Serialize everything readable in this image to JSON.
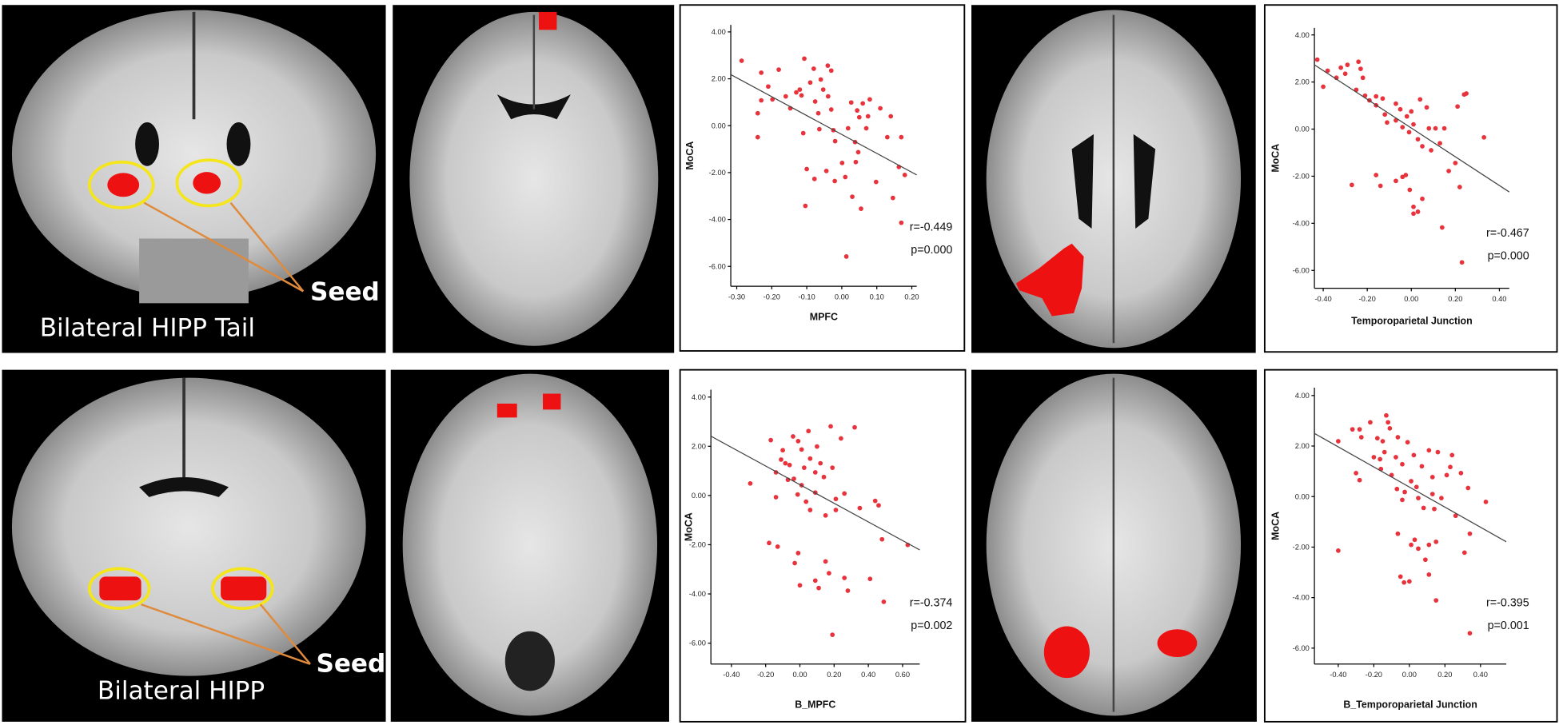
{
  "brain_panels": [
    {
      "label": "Bilateral HIPP Tail",
      "seed": "Seed"
    },
    {
      "label": "Bilateral HIPP",
      "seed": "Seed"
    }
  ],
  "chart_data": [
    {
      "type": "scatter",
      "x_label": "MPFC",
      "y_label": "MoCA",
      "color": "#e8323c",
      "annotations": [
        "r=-0.449",
        "p=0.000"
      ],
      "xlim": [
        -0.317,
        0.214
      ],
      "ylim": [
        -6.85,
        4.3
      ],
      "xticks": [
        {
          "value": -0.3,
          "label": "-0.30"
        },
        {
          "value": -0.2,
          "label": "-0.20"
        },
        {
          "value": -0.1,
          "label": "-0.10"
        },
        {
          "value": 0,
          "label": "0.00"
        },
        {
          "value": 0.1,
          "label": "0.10"
        },
        {
          "value": 0.2,
          "label": "0.20"
        }
      ],
      "yticks": [
        {
          "value": -6,
          "label": "-6.00"
        },
        {
          "value": -4,
          "label": "-4.00"
        },
        {
          "value": -2,
          "label": "-2.00"
        },
        {
          "value": 0,
          "label": "0.00"
        },
        {
          "value": 2,
          "label": "2.00"
        },
        {
          "value": 4,
          "label": "4.00"
        }
      ],
      "trend_line": {
        "x": [
          -0.317,
          0.214
        ],
        "y": [
          2.18,
          -2.1
        ]
      },
      "x": [
        -0.286,
        -0.23,
        -0.18,
        -0.21,
        -0.23,
        -0.24,
        -0.24,
        -0.198,
        -0.16,
        -0.147,
        -0.13,
        -0.115,
        -0.12,
        -0.107,
        -0.09,
        -0.08,
        -0.076,
        -0.067,
        -0.064,
        -0.06,
        -0.053,
        -0.04,
        -0.039,
        -0.03,
        -0.03,
        -0.024,
        -0.019,
        -0.044,
        -0.02,
        0.001,
        -0.1,
        -0.078,
        -0.104,
        -0.11,
        0.018,
        0.027,
        0.044,
        0.05,
        0.06,
        0.07,
        0.038,
        0.047,
        0.04,
        0.01,
        0.03,
        0.013,
        0.11,
        0.13,
        0.17,
        0.163,
        0.18,
        0.146,
        0.14,
        0.075,
        0.055,
        0.098,
        0.08,
        0.17
      ],
      "y": [
        2.77,
        2.26,
        2.39,
        1.67,
        1.08,
        0.53,
        -0.49,
        1.12,
        1.25,
        0.74,
        1.42,
        1.29,
        1.54,
        2.86,
        1.84,
        2.43,
        1.03,
        0.53,
        -0.15,
        1.97,
        1.54,
        2.56,
        1.25,
        2.35,
        0.69,
        -0.19,
        -0.66,
        -1.93,
        -2.36,
        -1.59,
        -1.85,
        -2.27,
        -3.42,
        -0.32,
        -0.11,
        0.99,
        0.65,
        0.36,
        0.95,
        -0.11,
        -0.7,
        -1.13,
        -1.55,
        -2.19,
        -3.03,
        -5.58,
        0.74,
        -0.49,
        -0.49,
        -1.76,
        -2.1,
        -3.08,
        0.4,
        0.4,
        -3.54,
        -2.4,
        1.12,
        -4.14
      ]
    },
    {
      "type": "scatter",
      "x_label": "Temporoparietal Junction",
      "y_label": "MoCA",
      "color": "#e8323c",
      "annotations": [
        "r=-0.467",
        "p=0.000"
      ],
      "xlim": [
        -0.44,
        0.445
      ],
      "ylim": [
        -6.76,
        4.3
      ],
      "xticks": [
        {
          "value": -0.4,
          "label": "-0.40"
        },
        {
          "value": -0.2,
          "label": "-0.20"
        },
        {
          "value": 0,
          "label": "0.00"
        },
        {
          "value": 0.2,
          "label": "0.20"
        },
        {
          "value": 0.4,
          "label": "0.40"
        }
      ],
      "yticks": [
        {
          "value": -6,
          "label": "-6.00"
        },
        {
          "value": -4,
          "label": "-4.00"
        },
        {
          "value": -2,
          "label": "-2.00"
        },
        {
          "value": 0,
          "label": "0.00"
        },
        {
          "value": 2,
          "label": "2.00"
        },
        {
          "value": 4,
          "label": "4.00"
        }
      ],
      "trend_line": {
        "x": [
          -0.44,
          0.445
        ],
        "y": [
          2.73,
          -2.67
        ]
      },
      "x": [
        -0.427,
        -0.4,
        -0.38,
        -0.34,
        -0.32,
        -0.3,
        -0.29,
        -0.24,
        -0.23,
        -0.22,
        -0.25,
        -0.21,
        -0.19,
        -0.16,
        -0.16,
        -0.13,
        -0.12,
        -0.11,
        -0.07,
        -0.07,
        -0.05,
        -0.04,
        -0.02,
        -0.01,
        0,
        0.01,
        0.03,
        0.04,
        0.05,
        0.07,
        0.08,
        0.09,
        0.11,
        0.13,
        0.15,
        0.17,
        0.2,
        0.21,
        0.24,
        0.25,
        0.22,
        0.33,
        0.23,
        -0.16,
        -0.14,
        -0.27,
        -0.07,
        -0.04,
        -0.025,
        -0.007,
        0.01,
        0.03,
        0.01,
        0.05,
        0.14
      ],
      "y": [
        2.95,
        1.8,
        2.48,
        2.18,
        2.61,
        2.35,
        2.73,
        2.86,
        2.56,
        2.18,
        1.67,
        1.42,
        1.22,
        1.39,
        1.01,
        1.3,
        0.62,
        0.28,
        1.08,
        0.37,
        0.84,
        0.08,
        0.54,
        -0.13,
        0.75,
        0.2,
        -0.43,
        1.26,
        -0.73,
        0.92,
        0.03,
        -0.9,
        0.03,
        -0.6,
        0.03,
        -1.78,
        -1.44,
        0.96,
        1.47,
        1.51,
        -2.46,
        -0.35,
        -5.66,
        -1.95,
        -2.41,
        -2.37,
        -2.2,
        -2.03,
        -1.95,
        -2.58,
        -3.3,
        -3.51,
        -3.59,
        -2.96,
        -4.18
      ]
    },
    {
      "type": "scatter",
      "x_label": "B_MPFC",
      "y_label": "MoCA",
      "color": "#e8323c",
      "annotations": [
        "r=-0.374",
        "p=0.002"
      ],
      "xlim": [
        -0.52,
        0.7
      ],
      "ylim": [
        -6.85,
        4.3
      ],
      "xticks": [
        {
          "value": -0.4,
          "label": "-0.40"
        },
        {
          "value": -0.2,
          "label": "-0.20"
        },
        {
          "value": 0,
          "label": "0.00"
        },
        {
          "value": 0.2,
          "label": "0.20"
        },
        {
          "value": 0.4,
          "label": "0.40"
        },
        {
          "value": 0.6,
          "label": "0.60"
        }
      ],
      "yticks": [
        {
          "value": -6,
          "label": "-6.00"
        },
        {
          "value": -4,
          "label": "-4.00"
        },
        {
          "value": -2,
          "label": "-2.00"
        },
        {
          "value": 0,
          "label": "0.00"
        },
        {
          "value": 2,
          "label": "2.00"
        },
        {
          "value": 4,
          "label": "4.00"
        }
      ],
      "trend_line": {
        "x": [
          -0.52,
          0.7
        ],
        "y": [
          2.41,
          -2.21
        ]
      },
      "x": [
        -0.29,
        -0.17,
        -0.14,
        -0.14,
        -0.11,
        -0.1,
        -0.085,
        -0.07,
        -0.06,
        -0.04,
        -0.035,
        -0.013,
        -0.01,
        0.01,
        0.01,
        0.025,
        0.036,
        0.05,
        0.06,
        0.06,
        0.09,
        0.09,
        0.1,
        0.12,
        0.14,
        0.15,
        0.18,
        0.19,
        0.21,
        0.21,
        0.24,
        0.26,
        0.32,
        0.35,
        0.44,
        0.46,
        0.48,
        0.63,
        -0.13,
        -0.18,
        -0.03,
        -0.01,
        0,
        0.09,
        0.17,
        0.15,
        0.11,
        0.26,
        0.28,
        0.41,
        0.49,
        0.19
      ],
      "y": [
        0.49,
        2.25,
        0.94,
        -0.07,
        1.46,
        1.84,
        1.31,
        0.64,
        1.24,
        2.4,
        0.68,
        0.04,
        2.21,
        1.87,
        0.42,
        1.13,
        -0.25,
        2.62,
        1.5,
        -0.59,
        0.94,
        0.12,
        1.99,
        1.31,
        0.75,
        -0.81,
        2.81,
        1.13,
        -0.14,
        -0.59,
        2.32,
        0.08,
        2.77,
        -0.51,
        -0.22,
        -0.4,
        -1.78,
        -2.01,
        -2.08,
        -1.93,
        -2.75,
        -2.34,
        -3.65,
        -3.46,
        -3.16,
        -2.68,
        -3.76,
        -3.35,
        -3.87,
        -3.39,
        -4.32,
        -5.66
      ]
    },
    {
      "type": "scatter",
      "x_label": "B_Temporoparietal Junction",
      "y_label": "MoCA",
      "color": "#e8323c",
      "annotations": [
        "r=-0.395",
        "p=0.001"
      ],
      "xlim": [
        -0.534,
        0.545
      ],
      "ylim": [
        -6.63,
        4.31
      ],
      "xticks": [
        {
          "value": -0.4,
          "label": "-0.40"
        },
        {
          "value": -0.2,
          "label": "-0.20"
        },
        {
          "value": 0,
          "label": "0.00"
        },
        {
          "value": 0.2,
          "label": "0.20"
        },
        {
          "value": 0.4,
          "label": "0.40"
        }
      ],
      "yticks": [
        {
          "value": -6,
          "label": "-6.00"
        },
        {
          "value": -4,
          "label": "-4.00"
        },
        {
          "value": -2,
          "label": "-2.00"
        },
        {
          "value": 0,
          "label": "0.00"
        },
        {
          "value": 2,
          "label": "2.00"
        },
        {
          "value": 4,
          "label": "4.00"
        }
      ],
      "trend_line": {
        "x": [
          -0.534,
          0.545
        ],
        "y": [
          2.5,
          -1.79
        ]
      },
      "x": [
        -0.4,
        -0.4,
        -0.32,
        -0.28,
        -0.27,
        -0.3,
        -0.28,
        -0.22,
        -0.2,
        -0.18,
        -0.165,
        -0.16,
        -0.15,
        -0.14,
        -0.13,
        -0.12,
        -0.11,
        -0.1,
        -0.076,
        -0.07,
        -0.065,
        -0.04,
        -0.04,
        -0.026,
        -0.01,
        0.01,
        0.025,
        0.04,
        0.05,
        0.07,
        0.08,
        0.11,
        0.13,
        0.13,
        0.14,
        0.15,
        0.16,
        0.18,
        0.21,
        0.23,
        0.24,
        0.26,
        0.29,
        0.33,
        0.34,
        0.31,
        0.43,
        -0.065,
        0.01,
        0.05,
        0.11,
        0.09,
        -0.05,
        -0.03,
        0,
        0.03,
        0.11,
        0.15,
        0.34
      ],
      "y": [
        2.19,
        -2.14,
        2.66,
        2.66,
        2.35,
        0.93,
        0.65,
        2.94,
        1.56,
        2.31,
        1.48,
        1.09,
        2.19,
        1.76,
        3.21,
        2.94,
        2.7,
        0.85,
        1.56,
        0.3,
        2.35,
        1.28,
        -0.13,
        0.18,
        2.15,
        0.61,
        1.64,
        0.38,
        -0.06,
        1.2,
        -0.45,
        1.83,
        0.77,
        0.1,
        -0.49,
        -1.79,
        1.76,
        -0.06,
        0.85,
        1.17,
        1.64,
        -0.76,
        0.93,
        0.34,
        -1.47,
        -2.22,
        -0.21,
        -1.47,
        -1.91,
        -2.06,
        -1.91,
        -2.5,
        -3.17,
        -3.4,
        -3.36,
        -1.71,
        -3.09,
        -4.11,
        -5.41
      ]
    }
  ]
}
